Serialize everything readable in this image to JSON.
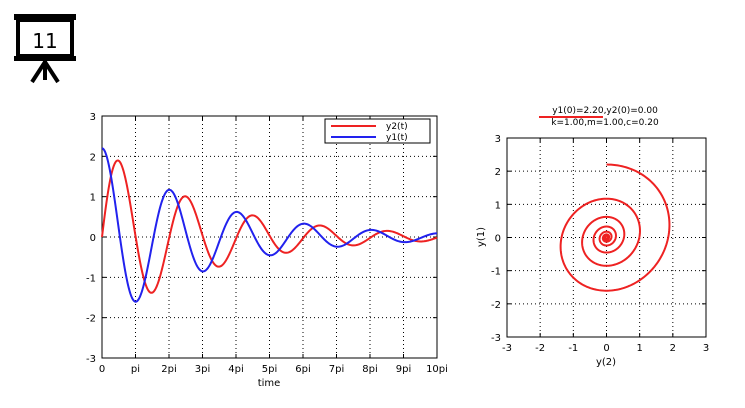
{
  "slide": {
    "number": "11"
  },
  "chart_data": [
    {
      "type": "line",
      "title": "",
      "xlabel": "time",
      "ylabel": "",
      "xlim_pi": [
        0,
        10
      ],
      "ylim": [
        -3,
        3
      ],
      "xticks": [
        "0",
        "pi",
        "2pi",
        "3pi",
        "4pi",
        "5pi",
        "6pi",
        "7pi",
        "8pi",
        "9pi",
        "10pi"
      ],
      "yticks": [
        "-3",
        "-2",
        "-1",
        "0",
        "1",
        "2",
        "3"
      ],
      "grid": true,
      "legend": "top-right",
      "series": [
        {
          "name": "y2(t)",
          "color": "#ee2222",
          "function": "damped_velocity",
          "y0": 0,
          "samples_at_x_pi": [
            [
              0,
              0
            ],
            [
              0.5,
              1.88
            ],
            [
              1.5,
              -1.38
            ],
            [
              2.5,
              1.02
            ],
            [
              3.5,
              -0.74
            ],
            [
              4.5,
              0.54
            ],
            [
              5.5,
              -0.4
            ],
            [
              6.5,
              0.29
            ],
            [
              7.5,
              -0.21
            ],
            [
              8.5,
              0.16
            ],
            [
              10,
              0
            ]
          ]
        },
        {
          "name": "y1(t)",
          "color": "#2222ee",
          "function": "damped_position",
          "y0": 2.2,
          "samples_at_x_pi": [
            [
              0,
              2.2
            ],
            [
              1,
              -1.62
            ],
            [
              2,
              1.19
            ],
            [
              3,
              -0.88
            ],
            [
              4,
              0.64
            ],
            [
              5,
              -0.47
            ],
            [
              6,
              0.35
            ],
            [
              7,
              -0.26
            ],
            [
              8,
              0.19
            ],
            [
              9,
              -0.14
            ],
            [
              10,
              0.1
            ]
          ]
        }
      ]
    },
    {
      "type": "line",
      "title_line1": "y1(0)=2.20,y2(0)=0.00",
      "title_line2": "k=1.00,m=1.00,c=0.20",
      "xlabel": "y(2)",
      "ylabel": "y(1)",
      "xlim": [
        -3,
        3
      ],
      "ylim": [
        -3,
        3
      ],
      "xticks": [
        "-3",
        "-2",
        "-1",
        "0",
        "1",
        "2",
        "3"
      ],
      "yticks": [
        "-3",
        "-2",
        "-1",
        "0",
        "1",
        "2",
        "3"
      ],
      "grid": true,
      "series": [
        {
          "name": "",
          "color": "#ee2222",
          "kind": "phase-portrait",
          "start": [
            0,
            2.2
          ],
          "params": {
            "k": 1.0,
            "m": 1.0,
            "c": 0.2
          }
        }
      ]
    }
  ]
}
